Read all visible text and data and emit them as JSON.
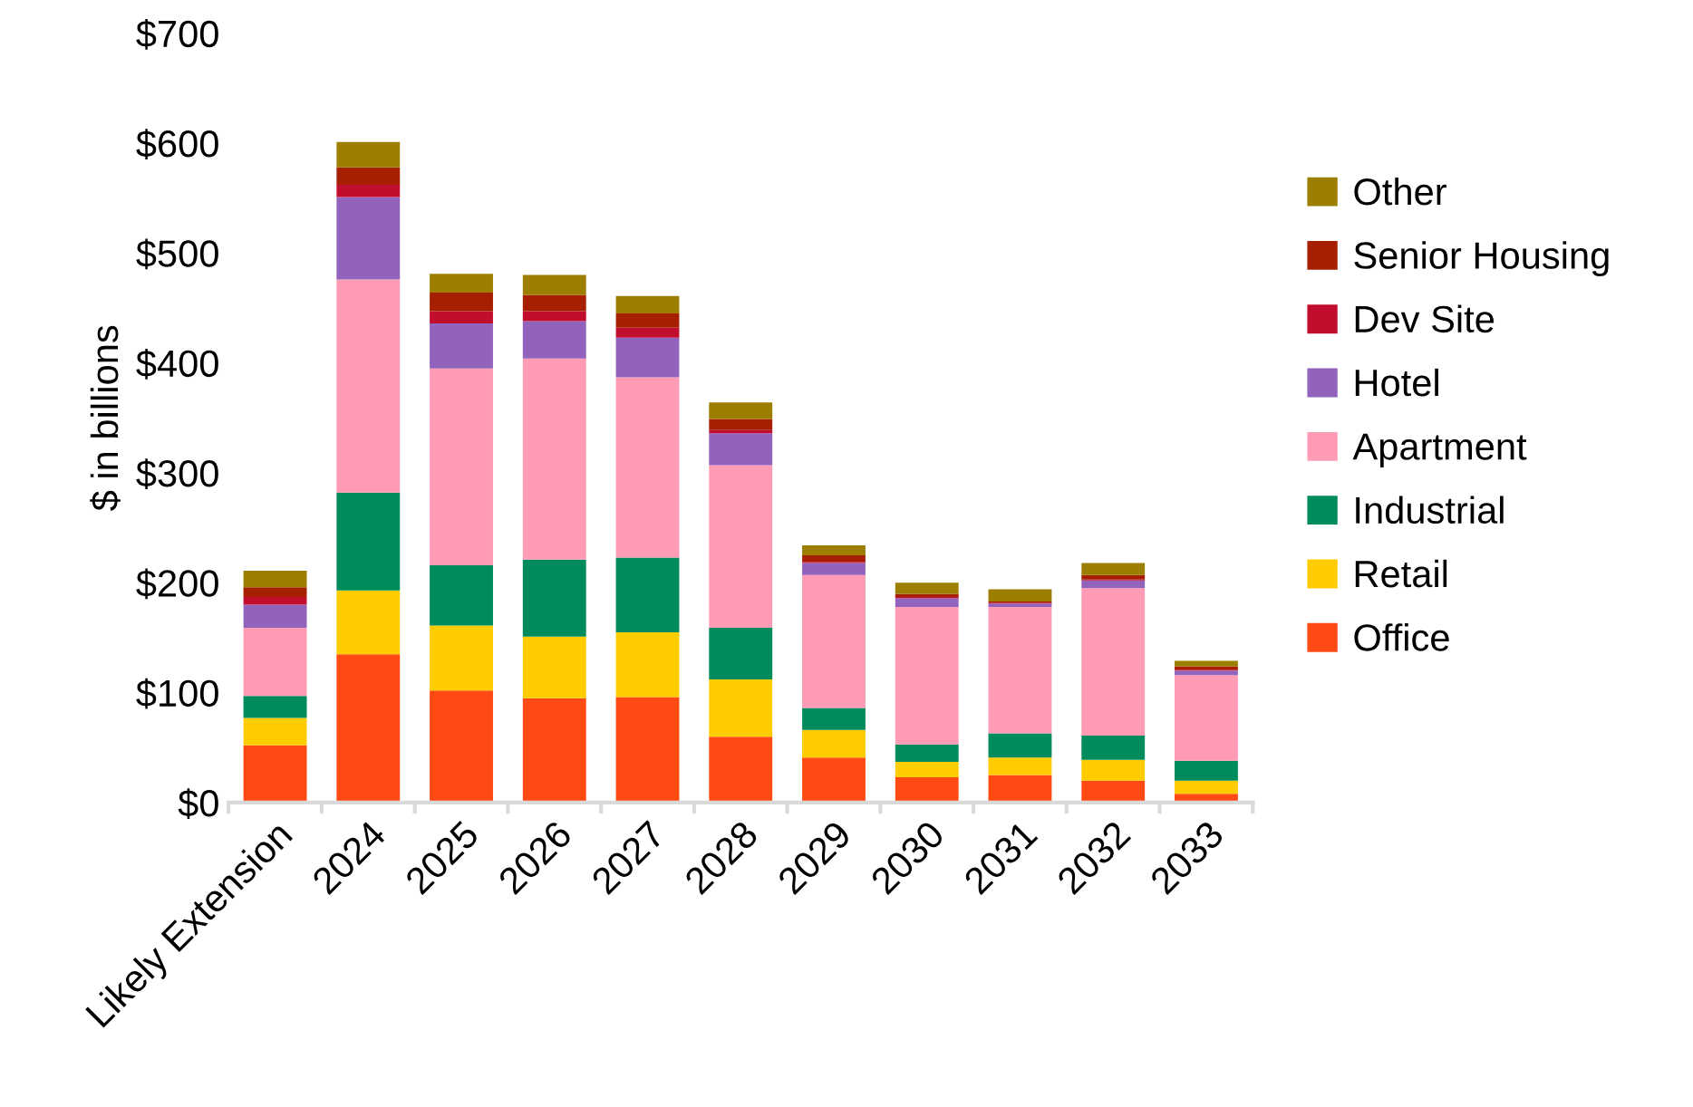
{
  "chart_data": {
    "type": "bar",
    "stacked": true,
    "ylabel": "$ in billions",
    "categories": [
      "Likely Extension",
      "2024",
      "2025",
      "2026",
      "2027",
      "2028",
      "2029",
      "2030",
      "2031",
      "2032",
      "2033"
    ],
    "series": [
      {
        "name": "Office",
        "color": "#ff4a14",
        "values": [
          52,
          135,
          102,
          95,
          96,
          60,
          41,
          23,
          25,
          20,
          8
        ]
      },
      {
        "name": "Retail",
        "color": "#ffcc00",
        "values": [
          25,
          58,
          59,
          56,
          59,
          52,
          25,
          14,
          16,
          19,
          12
        ]
      },
      {
        "name": "Industrial",
        "color": "#008b5c",
        "values": [
          20,
          89,
          55,
          70,
          68,
          47,
          20,
          16,
          22,
          22,
          18
        ]
      },
      {
        "name": "Apartment",
        "color": "#ff9bb5",
        "values": [
          62,
          194,
          179,
          183,
          164,
          148,
          121,
          125,
          115,
          134,
          78
        ]
      },
      {
        "name": "Hotel",
        "color": "#9263bc",
        "values": [
          21,
          75,
          41,
          34,
          36,
          29,
          11,
          8,
          3,
          7,
          4
        ]
      },
      {
        "name": "Dev Site",
        "color": "#c20e2e",
        "values": [
          7,
          11,
          11,
          9,
          9,
          3,
          1,
          1,
          1,
          1,
          1
        ]
      },
      {
        "name": "Senior Housing",
        "color": "#a61f00",
        "values": [
          9,
          16,
          17,
          15,
          13,
          10,
          6,
          3,
          1,
          4,
          3
        ]
      },
      {
        "name": "Other",
        "color": "#9c7f00",
        "values": [
          15,
          23,
          17,
          18,
          16,
          15,
          9,
          10,
          11,
          11,
          5
        ]
      }
    ],
    "ylim": [
      0,
      700
    ],
    "yticks": [
      {
        "value": 0,
        "label": "$0"
      },
      {
        "value": 100,
        "label": "$100"
      },
      {
        "value": 200,
        "label": "$200"
      },
      {
        "value": 300,
        "label": "$300"
      },
      {
        "value": 400,
        "label": "$400"
      },
      {
        "value": 500,
        "label": "$500"
      },
      {
        "value": 600,
        "label": "$600"
      },
      {
        "value": 700,
        "label": "$700"
      }
    ],
    "grid": false,
    "legend": "right"
  }
}
